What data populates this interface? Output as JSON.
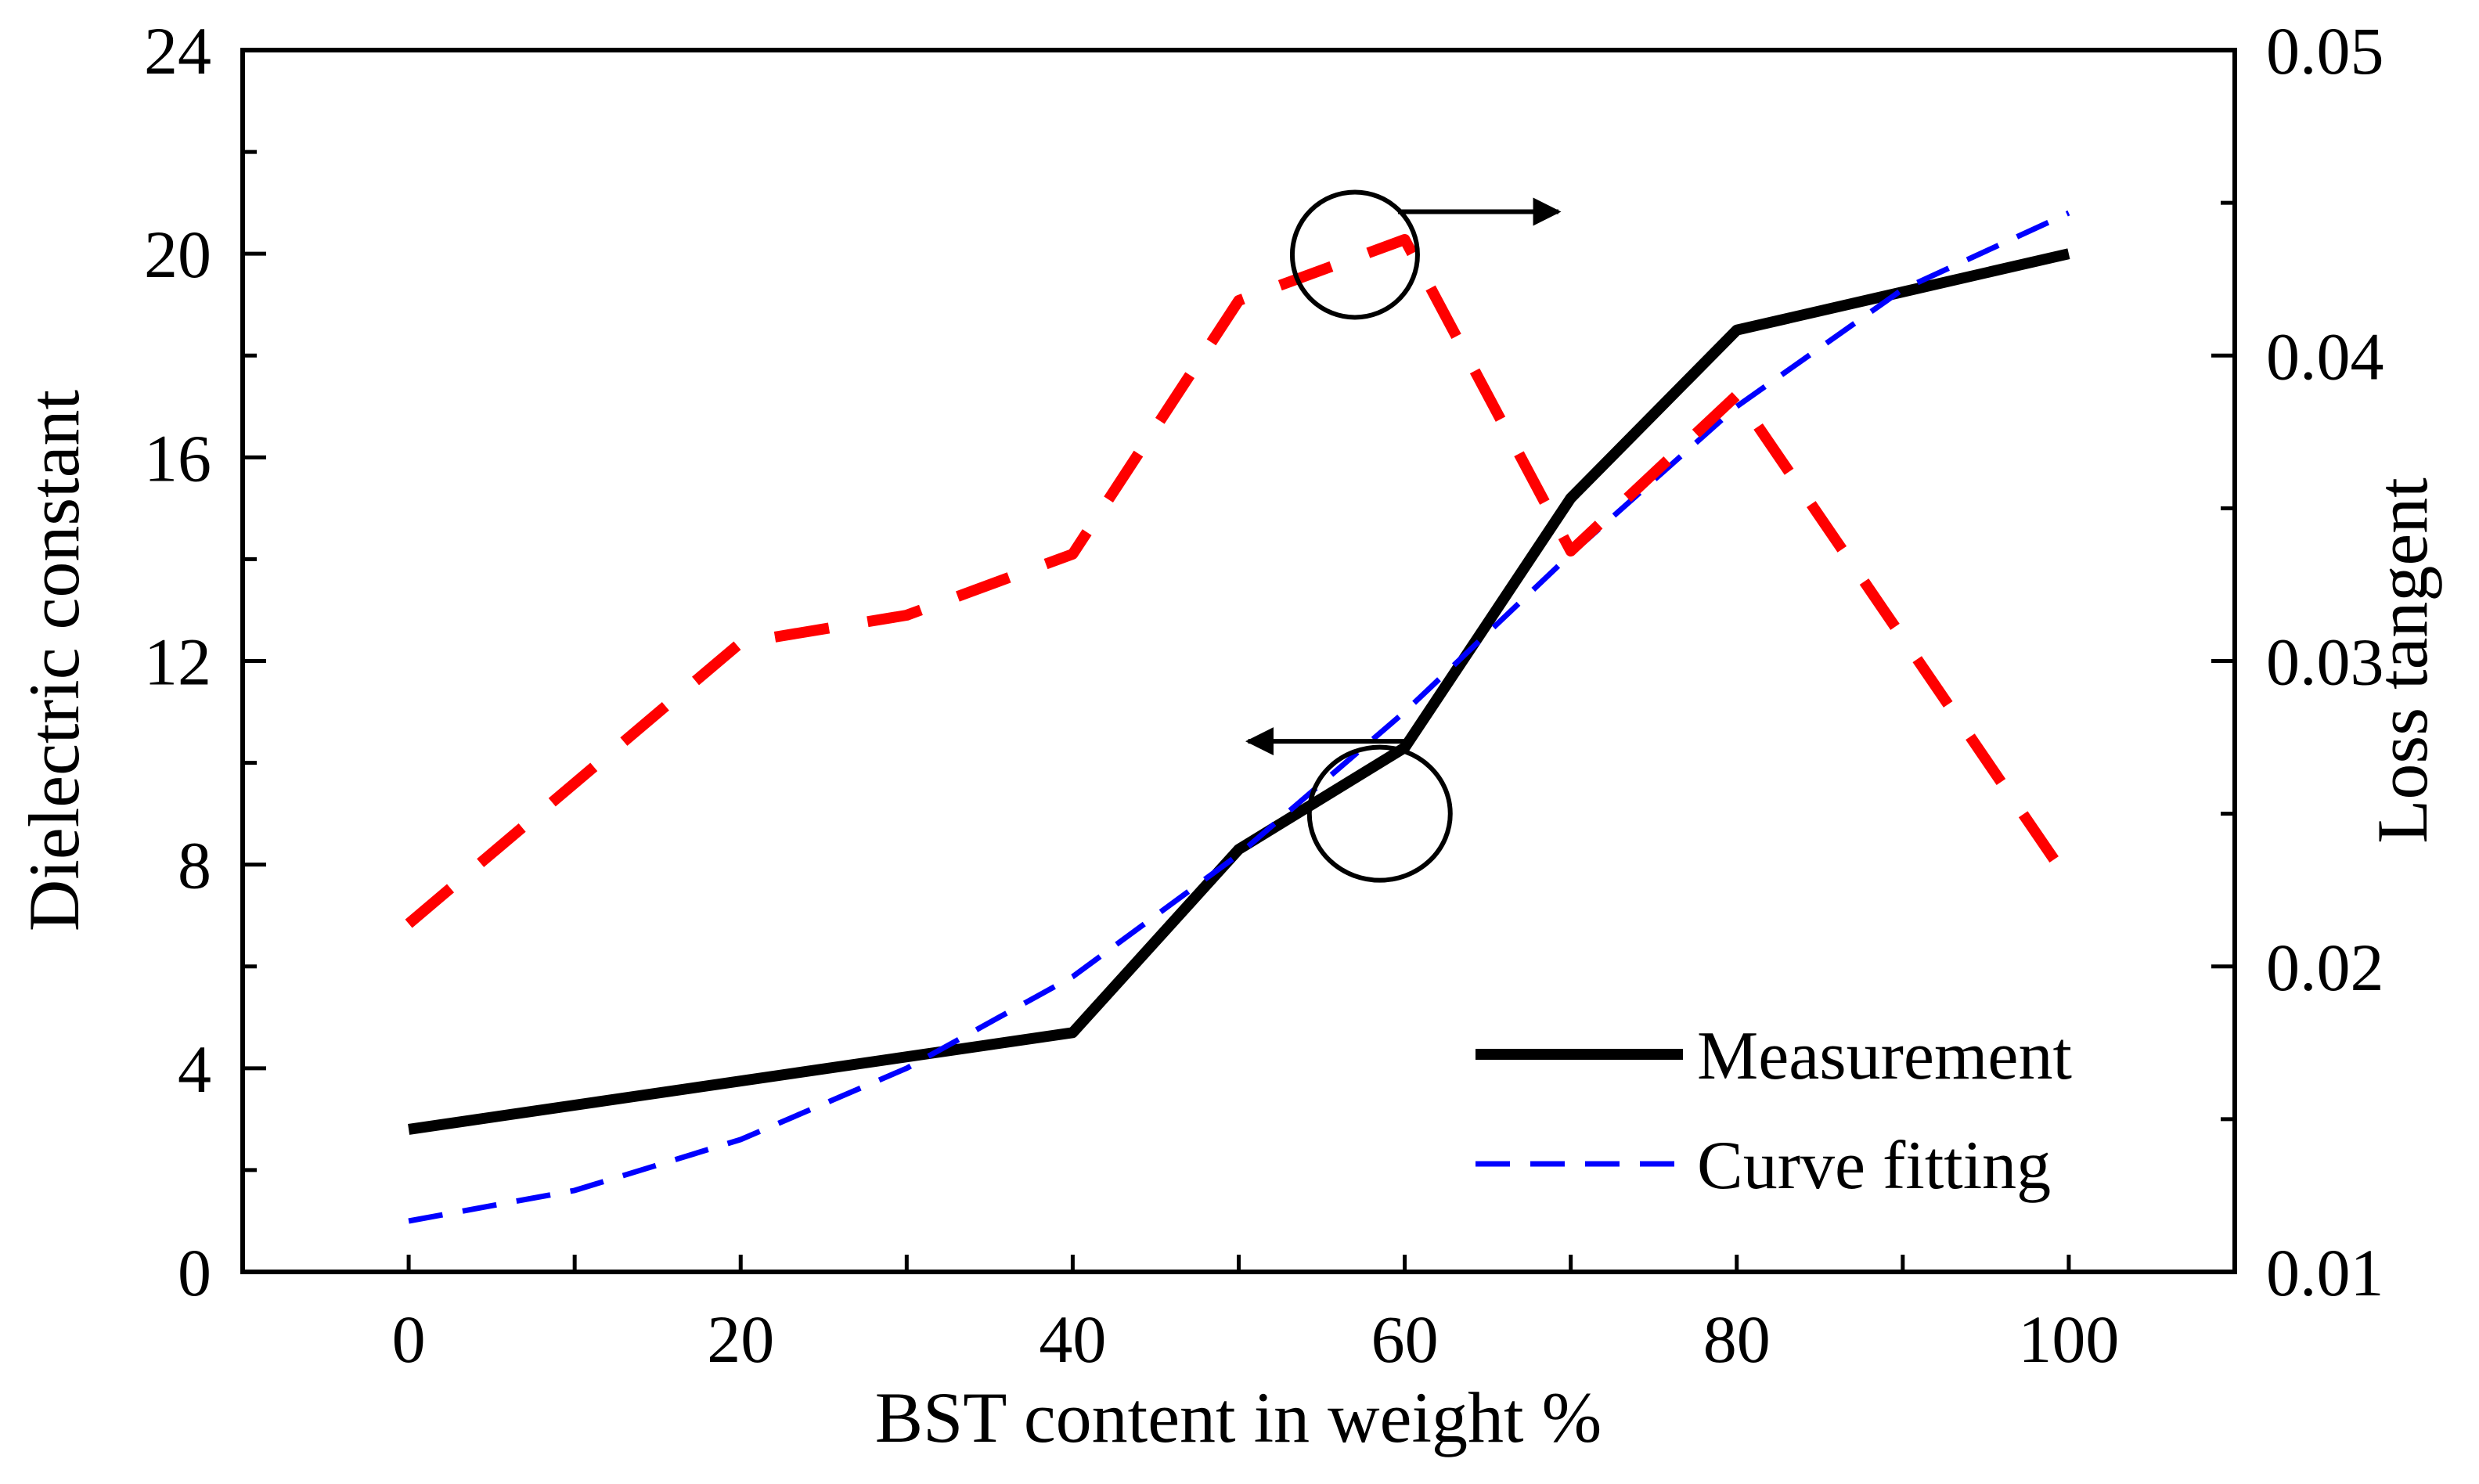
{
  "chart_data": {
    "type": "line",
    "xlabel": "BST content in weight %",
    "ylabel": "Dielectric constant",
    "y2label": "Loss tangent",
    "xlim": [
      -10,
      110
    ],
    "ylim": [
      0,
      24
    ],
    "y2lim": [
      0.01,
      0.05
    ],
    "x_ticks": [
      0,
      20,
      40,
      60,
      80,
      100
    ],
    "x_tick_labels": [
      "0",
      "20",
      "40",
      "60",
      "80",
      "100"
    ],
    "y_ticks": [
      0,
      4,
      8,
      12,
      16,
      20,
      24
    ],
    "y_tick_labels": [
      "0",
      "4",
      "8",
      "12",
      "16",
      "20",
      "24"
    ],
    "y2_ticks": [
      0.01,
      0.02,
      0.03,
      0.04,
      0.05
    ],
    "y2_tick_labels": [
      "0.01",
      "0.02",
      "0.03",
      "0.04",
      "0.05"
    ],
    "legend": {
      "position": "bottom-right",
      "entries": [
        "Measurement",
        "Curve fitting"
      ]
    },
    "series": [
      {
        "name": "Measurement",
        "axis": "left",
        "style": "solid",
        "color": "#000000",
        "x": [
          0,
          40,
          50,
          60,
          70,
          80,
          100
        ],
        "values": [
          2.8,
          4.7,
          8.3,
          10.3,
          15.2,
          18.5,
          20.0
        ]
      },
      {
        "name": "Curve fitting",
        "axis": "left",
        "style": "dashed",
        "color": "#0000ff",
        "x": [
          0,
          10,
          20,
          30,
          40,
          50,
          60,
          70,
          80,
          90,
          100
        ],
        "values": [
          1.0,
          1.6,
          2.6,
          4.0,
          5.8,
          8.2,
          11.0,
          14.1,
          17.0,
          19.3,
          20.8
        ]
      },
      {
        "name": "Loss tangent",
        "axis": "right",
        "style": "dashed",
        "color": "#ff0000",
        "x": [
          0,
          20,
          30,
          40,
          50,
          60,
          70,
          80,
          100
        ],
        "values": [
          0.0214,
          0.0306,
          0.0315,
          0.0335,
          0.0418,
          0.0438,
          0.0336,
          0.0387,
          0.0228
        ]
      }
    ],
    "annotations": [
      {
        "type": "circle-arrow",
        "at_x": 57,
        "at_y2": 0.0433,
        "arrow_direction": "right",
        "target_axis": "right"
      },
      {
        "type": "circle-arrow",
        "at_x": 58.5,
        "at_y": 9.0,
        "arrow_direction": "left",
        "target_axis": "left",
        "arrow_y": 10.3
      }
    ]
  }
}
